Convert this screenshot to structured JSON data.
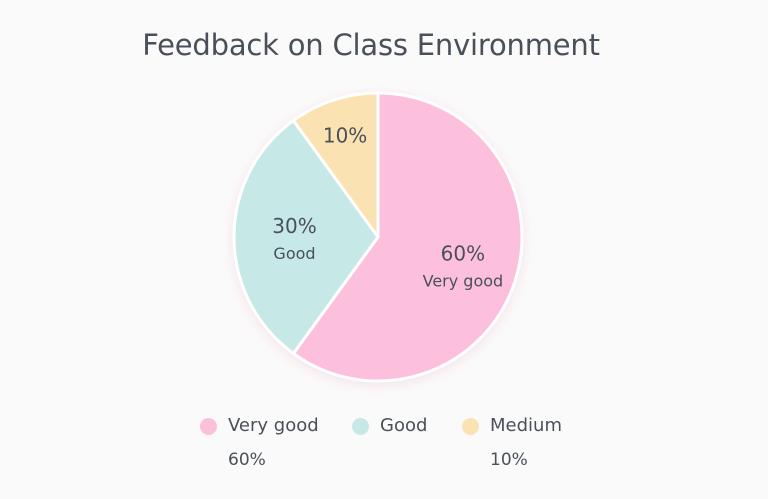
{
  "chart_data": {
    "type": "pie",
    "title": "Feedback on Class Environment",
    "slices": [
      {
        "name": "Very good",
        "value": 60,
        "color": "#fcc0dd",
        "slice_value_label": "60%",
        "slice_name_label": "Very good",
        "legend_value_label": "60%"
      },
      {
        "name": "Good",
        "value": 30,
        "color": "#c6e8e7",
        "slice_value_label": "30%",
        "slice_name_label": "Good",
        "legend_value_label": ""
      },
      {
        "name": "Medium",
        "value": 10,
        "color": "#fbe2b2",
        "slice_value_label": "10%",
        "slice_name_label": "",
        "legend_value_label": "10%"
      }
    ],
    "legend_placement": "bottom",
    "start": "top",
    "direction": "clockwise"
  }
}
